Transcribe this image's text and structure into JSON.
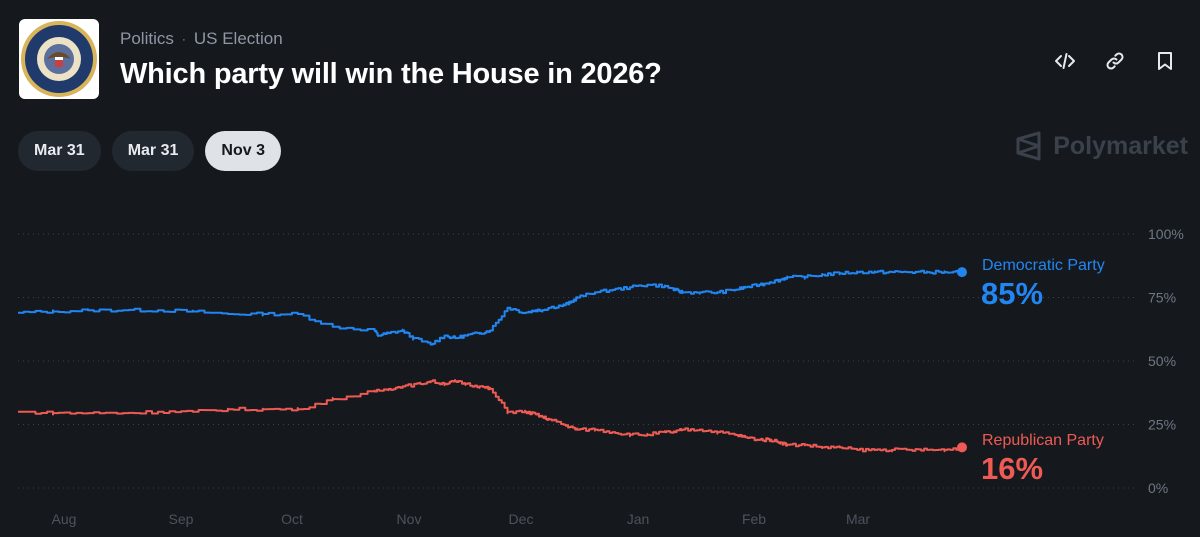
{
  "header": {
    "category": "Politics",
    "separator": "·",
    "subcategory": "US Election",
    "title": "Which party will win the House in 2026?",
    "logo_text": "U.S. HOUSE OF REPRESENTATIVES"
  },
  "actions": {
    "embed_icon": "code-icon",
    "link_icon": "link-icon",
    "bookmark_icon": "bookmark-icon"
  },
  "date_tabs": [
    {
      "label": "Mar 31",
      "active": false
    },
    {
      "label": "Mar 31",
      "active": false
    },
    {
      "label": "Nov 3",
      "active": true
    }
  ],
  "brand": "Polymarket",
  "colors": {
    "democratic": "#2186f2",
    "republican": "#ef5a54",
    "background": "#15191e"
  },
  "chart_data": {
    "type": "line",
    "title": "Which party will win the House in 2026?",
    "xlabel": "",
    "ylabel": "",
    "ylim": [
      0,
      100
    ],
    "x_ticks": [
      "Aug",
      "Sep",
      "Oct",
      "Nov",
      "Dec",
      "Jan",
      "Feb",
      "Mar"
    ],
    "y_ticks": [
      "100%",
      "75%",
      "50%",
      "25%",
      "0%"
    ],
    "y_tick_values": [
      100,
      75,
      50,
      25,
      0
    ],
    "x_range": [
      -40,
      230
    ],
    "grid": true,
    "series": [
      {
        "name": "Democratic Party",
        "label_value": "85%",
        "color": "#2186f2",
        "x": [
          -40,
          -30,
          -20,
          -10,
          0,
          10,
          20,
          30,
          40,
          50,
          62,
          63,
          66,
          70,
          73,
          78,
          82,
          85,
          88,
          92,
          95,
          100,
          105,
          108,
          110,
          112,
          116,
          118,
          120,
          125,
          130,
          135,
          140,
          145,
          148,
          150,
          155,
          160,
          165,
          168,
          172,
          175,
          178,
          180,
          185,
          190,
          195,
          200,
          205,
          210,
          215,
          220,
          225,
          230
        ],
        "values": [
          69,
          69.5,
          70,
          70,
          70,
          69.5,
          68.5,
          68.5,
          68.5,
          63.5,
          62,
          60,
          61,
          62,
          59,
          56.5,
          60,
          59,
          60,
          61,
          62,
          71,
          69,
          70,
          70,
          71,
          72,
          73,
          75,
          77,
          78,
          79,
          80,
          79.5,
          78,
          77,
          77,
          77,
          78,
          79,
          80,
          81,
          82,
          83,
          83,
          84,
          84.5,
          85,
          85,
          85,
          85,
          85,
          85,
          85
        ]
      },
      {
        "name": "Republican Party",
        "label_value": "16%",
        "color": "#ef5a54",
        "x": [
          -40,
          -30,
          -20,
          -10,
          0,
          10,
          20,
          30,
          40,
          50,
          62,
          66,
          70,
          75,
          78,
          82,
          85,
          88,
          92,
          95,
          100,
          105,
          108,
          110,
          112,
          116,
          118,
          120,
          125,
          130,
          135,
          140,
          145,
          148,
          150,
          155,
          160,
          165,
          168,
          172,
          175,
          178,
          180,
          185,
          190,
          195,
          200,
          205,
          210,
          215,
          220,
          225,
          230
        ],
        "values": [
          30,
          29.5,
          29.5,
          29.5,
          30,
          30,
          31,
          31,
          31,
          35,
          38,
          39,
          40,
          41,
          42,
          41,
          42,
          41,
          40,
          39,
          30,
          30,
          29,
          28,
          27,
          25,
          24,
          23,
          23,
          22,
          21,
          21,
          22,
          22,
          23,
          23,
          22,
          21,
          20,
          19,
          19,
          18,
          17,
          17,
          16,
          16,
          15,
          15,
          15,
          15,
          15,
          15,
          16
        ]
      }
    ]
  }
}
